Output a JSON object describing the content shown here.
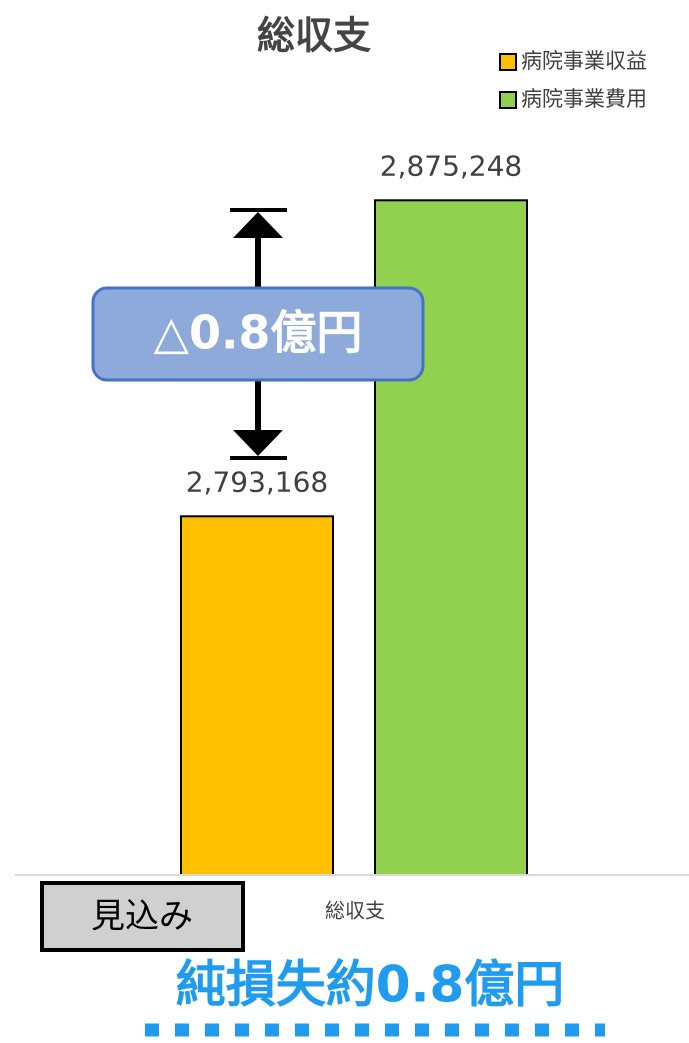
{
  "chart_data": {
    "type": "bar",
    "title": "総収支",
    "categories": [
      "総収支"
    ],
    "series": [
      {
        "name": "病院事業収益",
        "color": "#ffc000",
        "values": [
          2793168
        ],
        "value_labels": [
          "2,793,168"
        ]
      },
      {
        "name": "病院事業費用",
        "color": "#92d050",
        "values": [
          2875248
        ],
        "value_labels": [
          "2,875,248"
        ]
      }
    ],
    "ylim": [
      2700000,
      2900000
    ],
    "legend": "top-right",
    "annotations": {
      "difference": "△0.8億円",
      "status": "見込み",
      "result": "純損失約0.8億円"
    }
  }
}
